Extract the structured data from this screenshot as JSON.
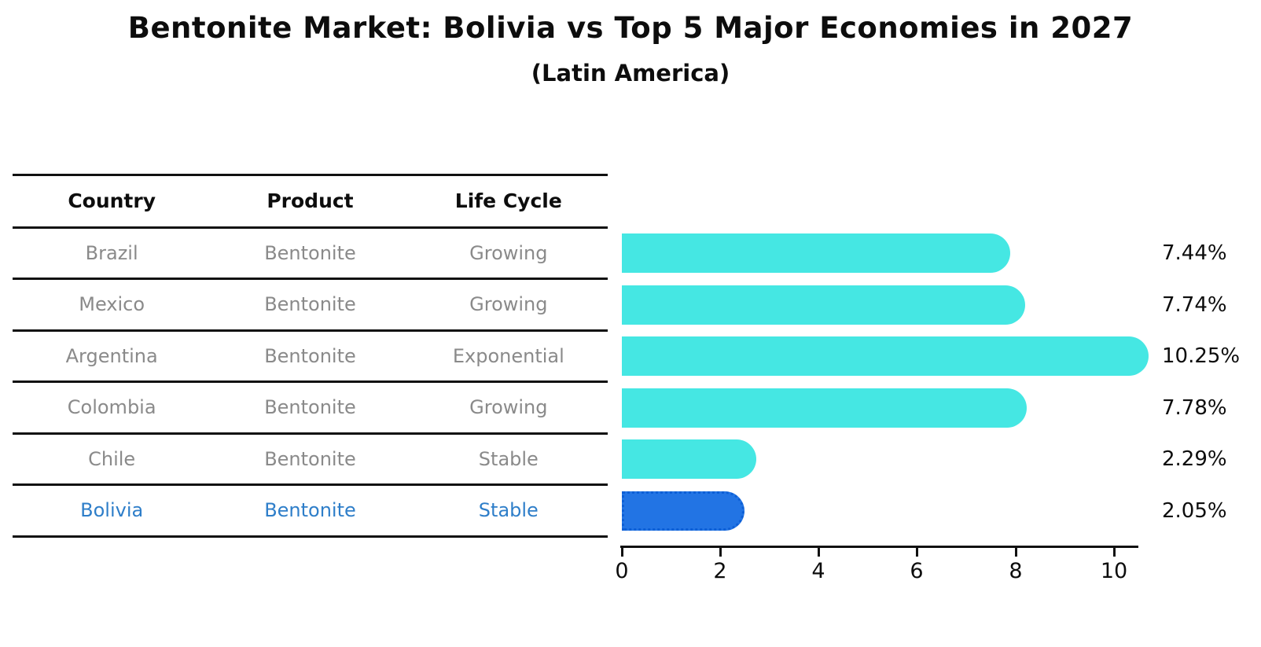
{
  "header": {
    "title": "Bentonite Market: Bolivia vs Top 5 Major Economies in 2027",
    "subtitle": "(Latin America)"
  },
  "table": {
    "columns": [
      "Country",
      "Product",
      "Life Cycle"
    ],
    "rows": [
      {
        "country": "Brazil",
        "product": "Bentonite",
        "life_cycle": "Growing",
        "value_label": "7.44%",
        "highlight": false
      },
      {
        "country": "Mexico",
        "product": "Bentonite",
        "life_cycle": "Growing",
        "value_label": "7.74%",
        "highlight": false
      },
      {
        "country": "Argentina",
        "product": "Bentonite",
        "life_cycle": "Exponential",
        "value_label": "10.25%",
        "highlight": false
      },
      {
        "country": "Colombia",
        "product": "Bentonite",
        "life_cycle": "Growing",
        "value_label": "7.78%",
        "highlight": false
      },
      {
        "country": "Chile",
        "product": "Bentonite",
        "life_cycle": "Stable",
        "value_label": "2.29%",
        "highlight": false
      },
      {
        "country": "Bolivia",
        "product": "Bentonite",
        "life_cycle": "Stable",
        "value_label": "2.05%",
        "highlight": true
      }
    ]
  },
  "axis": {
    "ticks": [
      "0",
      "2",
      "4",
      "6",
      "8",
      "10"
    ]
  },
  "colors": {
    "bar": "#45E7E3",
    "highlight_bar": "#2274E4",
    "highlight_bar_edge": "#0d5fd6",
    "highlight_text": "#2E7EC9",
    "row_text": "#8a8a8a",
    "heading_text": "#0d0d0d"
  },
  "chart_data": {
    "type": "bar",
    "orientation": "horizontal",
    "title": "Bentonite Market: Bolivia vs Top 5 Major Economies in 2027",
    "subtitle": "(Latin America)",
    "categories": [
      "Brazil",
      "Mexico",
      "Argentina",
      "Colombia",
      "Chile",
      "Bolivia"
    ],
    "values": [
      7.44,
      7.74,
      10.25,
      7.78,
      2.29,
      2.05
    ],
    "value_labels": [
      "7.44%",
      "7.74%",
      "10.25%",
      "7.78%",
      "2.29%",
      "2.05%"
    ],
    "xlabel": "",
    "ylabel": "",
    "xlim": [
      0,
      10.5
    ],
    "x_ticks": [
      0,
      2,
      4,
      6,
      8,
      10
    ],
    "grid": false,
    "legend": false,
    "bar_color": "#45E7E3",
    "highlight_category": "Bolivia",
    "highlight_color": "#2274E4",
    "table_columns": [
      "Country",
      "Product",
      "Life Cycle"
    ]
  }
}
